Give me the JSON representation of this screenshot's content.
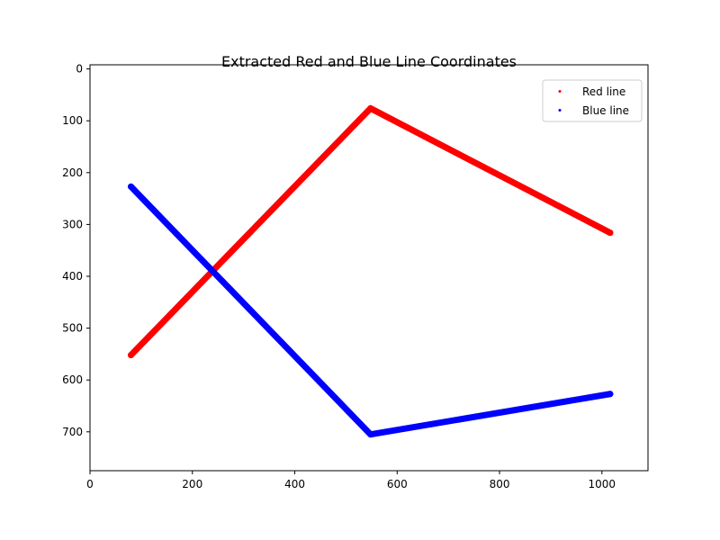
{
  "chart_data": {
    "type": "scatter",
    "title": "Extracted Red and Blue Line Coordinates",
    "xlabel": "",
    "ylabel": "",
    "xlim": [
      0,
      1090
    ],
    "ylim": [
      775,
      -8
    ],
    "y_inverted": true,
    "grid": false,
    "legend_position": "top-right",
    "x_ticks": [
      0,
      200,
      400,
      600,
      800,
      1000
    ],
    "y_ticks": [
      0,
      100,
      200,
      300,
      400,
      500,
      600,
      700
    ],
    "series": [
      {
        "name": "Red line",
        "color": "#ff0000",
        "vertices": [
          [
            80,
            552
          ],
          [
            548,
            76
          ],
          [
            1016,
            316
          ]
        ]
      },
      {
        "name": "Blue line",
        "color": "#0000ff",
        "vertices": [
          [
            80,
            227
          ],
          [
            548,
            705
          ],
          [
            1016,
            627
          ]
        ]
      }
    ]
  }
}
